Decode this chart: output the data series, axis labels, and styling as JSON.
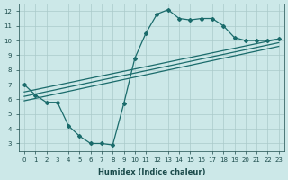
{
  "xlabel": "Humidex (Indice chaleur)",
  "ylabel": "",
  "bg_color": "#cce8e8",
  "grid_color": "#aacaca",
  "line_color": "#1a6b6b",
  "xlim": [
    -0.5,
    23.5
  ],
  "ylim": [
    2.5,
    12.5
  ],
  "xticks": [
    0,
    1,
    2,
    3,
    4,
    5,
    6,
    7,
    8,
    9,
    10,
    11,
    12,
    13,
    14,
    15,
    16,
    17,
    18,
    19,
    20,
    21,
    22,
    23
  ],
  "yticks": [
    3,
    4,
    5,
    6,
    7,
    8,
    9,
    10,
    11,
    12
  ],
  "line_wavy": {
    "x": [
      0,
      1,
      2,
      3,
      4,
      5,
      6,
      7,
      8,
      9,
      10,
      11,
      12,
      13,
      14,
      15,
      16,
      17,
      18,
      19,
      20,
      21,
      22,
      23
    ],
    "y": [
      7.0,
      6.3,
      5.8,
      5.8,
      4.2,
      3.5,
      3.0,
      3.0,
      2.9,
      5.7,
      8.8,
      10.5,
      11.8,
      12.1,
      11.5,
      11.4,
      11.5,
      11.5,
      11.0,
      10.2,
      10.0,
      10.0,
      10.0,
      10.1
    ]
  },
  "line_top": {
    "x": [
      0,
      23
    ],
    "y": [
      6.5,
      10.1
    ]
  },
  "line_mid": {
    "x": [
      0,
      23
    ],
    "y": [
      6.2,
      9.85
    ]
  },
  "line_bot": {
    "x": [
      0,
      23
    ],
    "y": [
      5.9,
      9.6
    ]
  }
}
